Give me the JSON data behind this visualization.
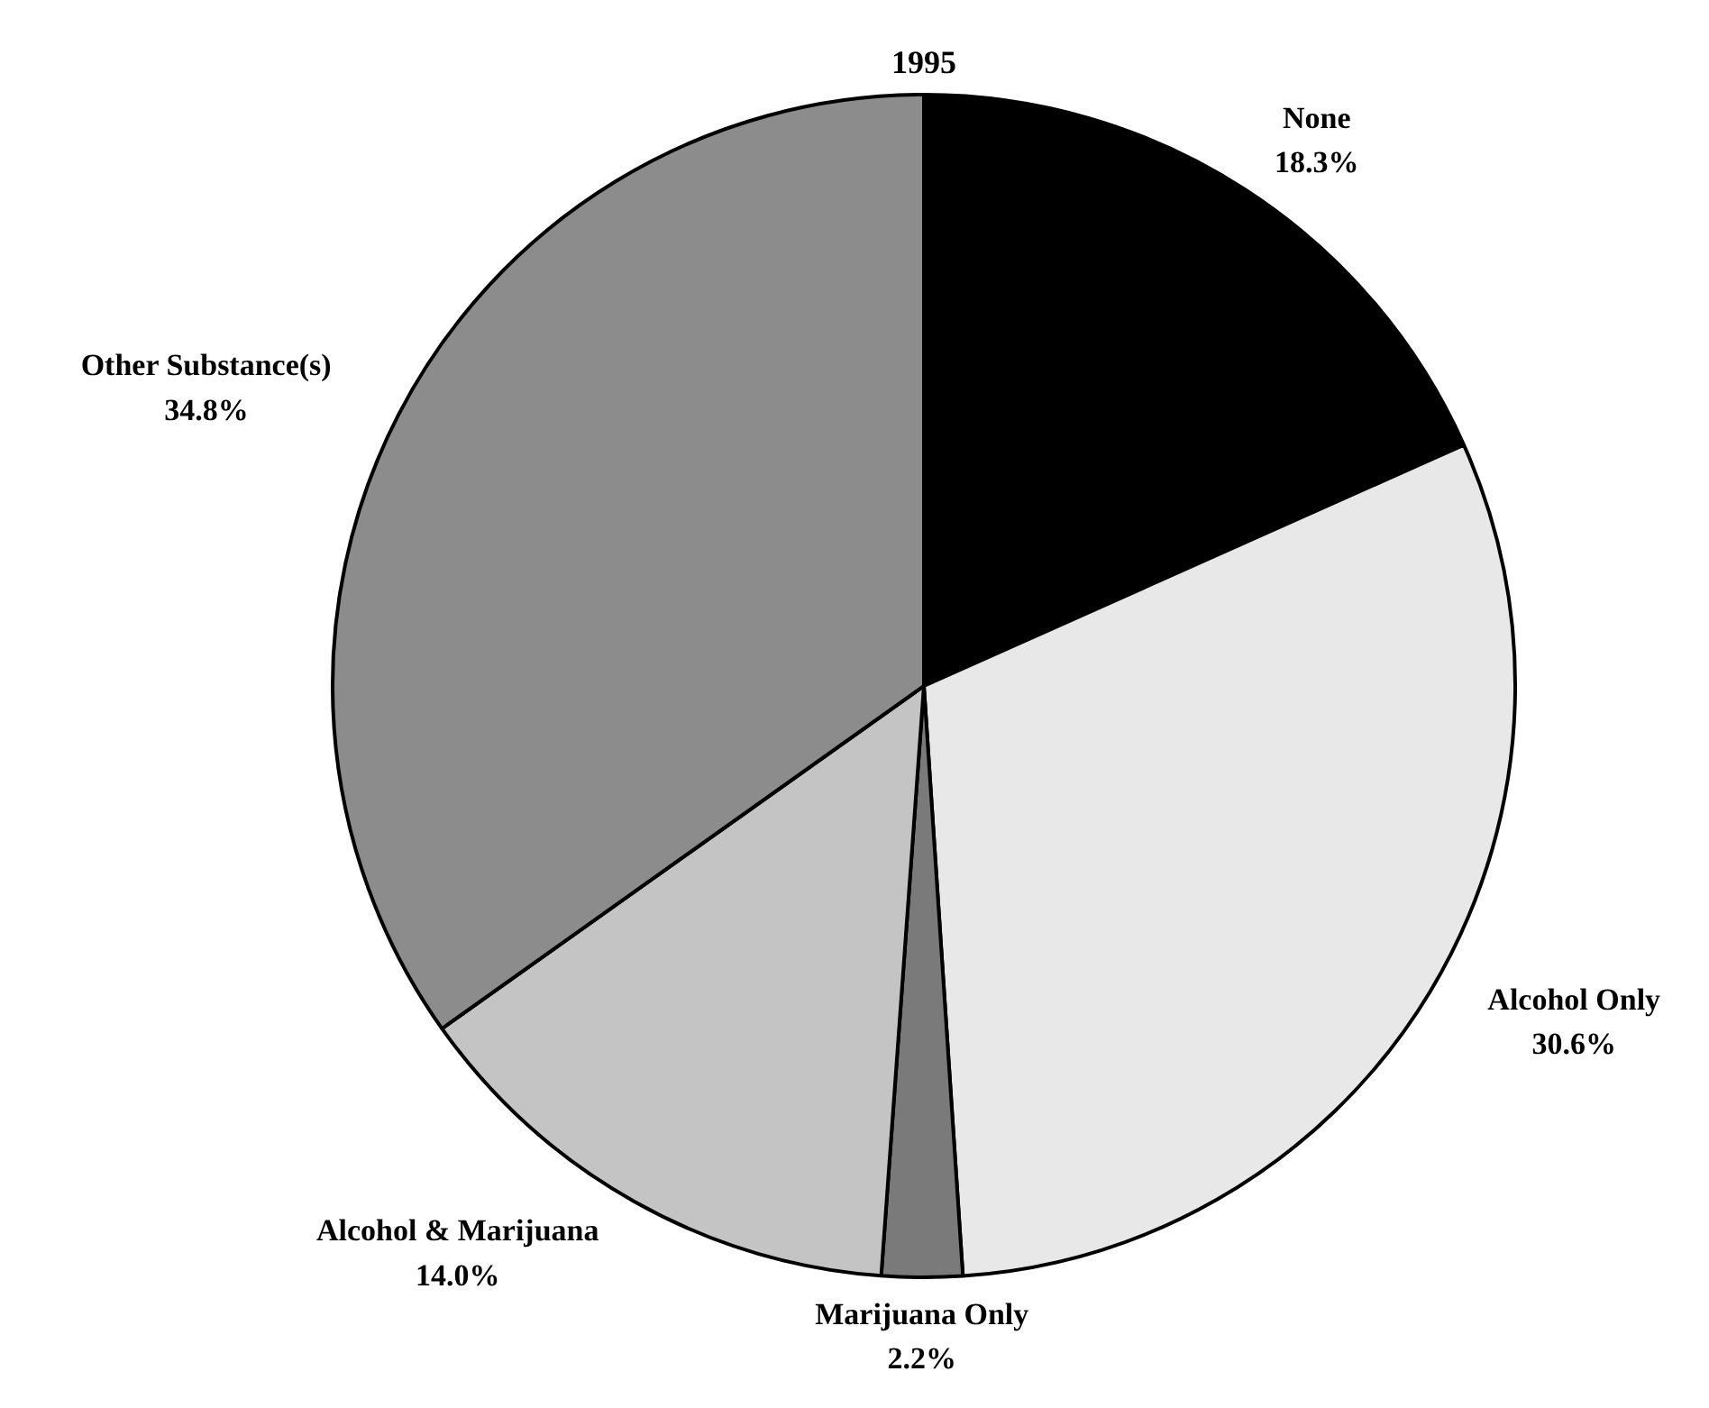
{
  "chart_data": {
    "type": "pie",
    "title": "1995",
    "categories": [
      "None",
      "Alcohol Only",
      "Marijuana Only",
      "Alcohol & Marijuana",
      "Other Substance(s)"
    ],
    "values": [
      18.3,
      30.6,
      2.2,
      14.0,
      34.8
    ],
    "colors": [
      "#000000",
      "#e8e8e8",
      "#7a7a7a",
      "#c4c4c4",
      "#8c8c8c"
    ],
    "value_labels": [
      "18.3%",
      "30.6%",
      "2.2%",
      "14.0%",
      "34.8%"
    ]
  }
}
